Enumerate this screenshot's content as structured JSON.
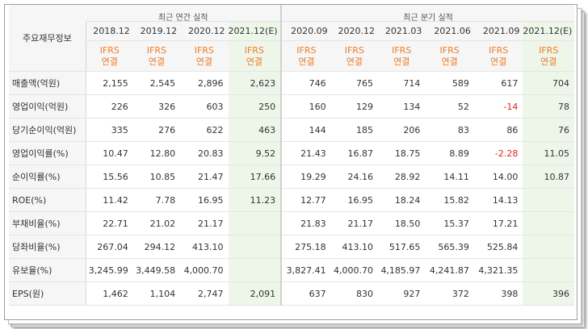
{
  "header": {
    "row_label": "주요재무정보",
    "annual_group": "최근 연간 실적",
    "quarter_group": "최근 분기 실적",
    "annual_periods": [
      "2018.12",
      "2019.12",
      "2020.12",
      "2021.12(E)"
    ],
    "quarter_periods": [
      "2020.09",
      "2020.12",
      "2021.03",
      "2021.06",
      "2021.09",
      "2021.12(E)"
    ],
    "ifrs_top": "IFRS",
    "ifrs_bottom": "연결"
  },
  "rows": [
    {
      "label": "매출액(억원)",
      "annual": [
        "2,155",
        "2,545",
        "2,896",
        "2,623"
      ],
      "quarter": [
        "746",
        "765",
        "714",
        "589",
        "617",
        "704"
      ]
    },
    {
      "label": "영업이익(억원)",
      "annual": [
        "226",
        "326",
        "603",
        "250"
      ],
      "quarter": [
        "160",
        "129",
        "134",
        "52",
        "-14",
        "78"
      ]
    },
    {
      "label": "당기순이익(억원)",
      "annual": [
        "335",
        "276",
        "622",
        "463"
      ],
      "quarter": [
        "144",
        "185",
        "206",
        "83",
        "86",
        "76"
      ]
    },
    {
      "label": "영업이익률(%)",
      "annual": [
        "10.47",
        "12.80",
        "20.83",
        "9.52"
      ],
      "quarter": [
        "21.43",
        "16.87",
        "18.75",
        "8.89",
        "-2.28",
        "11.05"
      ]
    },
    {
      "label": "순이익률(%)",
      "annual": [
        "15.56",
        "10.85",
        "21.47",
        "17.66"
      ],
      "quarter": [
        "19.29",
        "24.16",
        "28.92",
        "14.11",
        "14.00",
        "10.87"
      ]
    },
    {
      "label": "ROE(%)",
      "annual": [
        "11.42",
        "7.78",
        "16.95",
        "11.23"
      ],
      "quarter": [
        "12.77",
        "16.95",
        "18.24",
        "15.82",
        "14.13",
        ""
      ]
    },
    {
      "label": "부채비율(%)",
      "annual": [
        "22.71",
        "21.02",
        "21.17",
        ""
      ],
      "quarter": [
        "21.83",
        "21.17",
        "18.50",
        "15.37",
        "17.21",
        ""
      ]
    },
    {
      "label": "당좌비율(%)",
      "annual": [
        "267.04",
        "294.12",
        "413.10",
        ""
      ],
      "quarter": [
        "275.18",
        "413.10",
        "517.65",
        "565.39",
        "525.84",
        ""
      ]
    },
    {
      "label": "유보율(%)",
      "annual": [
        "3,245.99",
        "3,449.58",
        "4,000.70",
        ""
      ],
      "quarter": [
        "3,827.41",
        "4,000.70",
        "4,185.97",
        "4,241.87",
        "4,321.35",
        ""
      ]
    },
    {
      "label": "EPS(원)",
      "annual": [
        "1,462",
        "1,104",
        "2,747",
        "2,091"
      ],
      "quarter": [
        "637",
        "830",
        "927",
        "372",
        "398",
        "396"
      ]
    }
  ],
  "colors": {
    "ifrs": "#f07b24",
    "negative": "#e02020",
    "estimate_bg": "#eef6ea"
  }
}
